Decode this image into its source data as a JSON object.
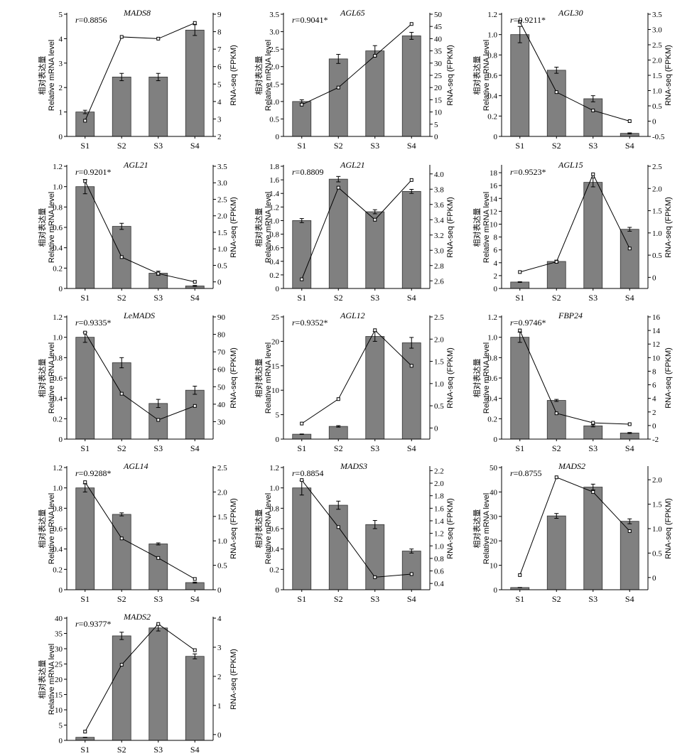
{
  "axis_titles": {
    "left_cn": "相对表达量",
    "left_en": "Relative mRNA level",
    "right": "RNA-seq (FPKM)"
  },
  "colors": {
    "bar": "#808080",
    "bar_stroke": "#333333",
    "line": "#000000"
  },
  "chart_data": [
    {
      "type": "bar+line",
      "gene": "MADS8",
      "r": "=0.8856",
      "categories": [
        "S1",
        "S2",
        "S3",
        "S4"
      ],
      "bar_values": [
        1.0,
        2.43,
        2.43,
        4.35
      ],
      "bar_errors": [
        0.07,
        0.15,
        0.15,
        0.22
      ],
      "line_values": [
        2.9,
        7.7,
        7.6,
        8.5
      ],
      "ylim_left": [
        0,
        5
      ],
      "yticks_left": [
        0,
        1,
        2,
        3,
        4,
        5
      ],
      "ylim_right": [
        2,
        9
      ],
      "yticks_right": [
        2,
        3,
        4,
        5,
        6,
        7,
        8,
        9
      ]
    },
    {
      "type": "bar+line",
      "gene": "AGL65",
      "r": "=0.9041*",
      "categories": [
        "S1",
        "S2",
        "S3",
        "S4"
      ],
      "bar_values": [
        1.0,
        2.22,
        2.45,
        2.88
      ],
      "bar_errors": [
        0.05,
        0.13,
        0.15,
        0.1
      ],
      "line_values": [
        13,
        20,
        33,
        46
      ],
      "ylim_left": [
        0,
        3.5
      ],
      "yticks_left": [
        0,
        0.5,
        1.0,
        1.5,
        2.0,
        2.5,
        3.0,
        3.5
      ],
      "ylim_right": [
        0,
        50
      ],
      "yticks_right": [
        0,
        5,
        10,
        15,
        20,
        25,
        30,
        35,
        40,
        45,
        50
      ]
    },
    {
      "type": "bar+line",
      "gene": "AGL30",
      "r": "=0.9211*",
      "categories": [
        "S1",
        "S2",
        "S3",
        "S4"
      ],
      "bar_values": [
        1.0,
        0.65,
        0.37,
        0.03
      ],
      "bar_errors": [
        0.08,
        0.03,
        0.03,
        0.005
      ],
      "line_values": [
        3.25,
        0.95,
        0.35,
        0.0
      ],
      "ylim_left": [
        0,
        1.2
      ],
      "yticks_left": [
        0,
        0.2,
        0.4,
        0.6,
        0.8,
        1.0,
        1.2
      ],
      "ylim_right": [
        -0.5,
        3.5
      ],
      "yticks_right": [
        -0.5,
        0,
        0.5,
        1.0,
        1.5,
        2.0,
        2.5,
        3.0,
        3.5
      ]
    },
    {
      "type": "bar+line",
      "gene": "AGL21",
      "r": "=0.9201*",
      "categories": [
        "S1",
        "S2",
        "S3",
        "S4"
      ],
      "bar_values": [
        1.0,
        0.61,
        0.15,
        0.025
      ],
      "bar_errors": [
        0.07,
        0.03,
        0.02,
        0.005
      ],
      "line_values": [
        3.05,
        0.75,
        0.25,
        0.0
      ],
      "ylim_left": [
        0,
        1.2
      ],
      "yticks_left": [
        0,
        0.2,
        0.4,
        0.6,
        0.8,
        1.0,
        1.2
      ],
      "ylim_right": [
        -0.2,
        3.5
      ],
      "yticks_right": [
        0,
        0.5,
        1.0,
        1.5,
        2.0,
        2.5,
        3.0,
        3.5
      ]
    },
    {
      "type": "bar+line",
      "gene": "AGL21",
      "r": "=0.8809",
      "categories": [
        "S1",
        "S2",
        "S3",
        "S4"
      ],
      "bar_values": [
        1.0,
        1.61,
        1.13,
        1.43
      ],
      "bar_errors": [
        0.03,
        0.04,
        0.03,
        0.03
      ],
      "line_values": [
        2.62,
        3.82,
        3.4,
        3.92
      ],
      "ylim_left": [
        0,
        1.8
      ],
      "yticks_left": [
        0,
        0.2,
        0.4,
        0.6,
        0.8,
        1.0,
        1.2,
        1.4,
        1.6,
        1.8
      ],
      "ylim_right": [
        2.5,
        4.1
      ],
      "yticks_right": [
        2.6,
        2.8,
        3.0,
        3.2,
        3.4,
        3.6,
        3.8,
        4.0
      ]
    },
    {
      "type": "bar+line",
      "gene": "AGL15",
      "r": "=0.9523*",
      "categories": [
        "S1",
        "S2",
        "S3",
        "S4"
      ],
      "bar_values": [
        1.0,
        4.2,
        16.5,
        9.2
      ],
      "bar_errors": [
        0.05,
        0.2,
        0.7,
        0.3
      ],
      "line_values": [
        0.12,
        0.35,
        2.32,
        0.65
      ],
      "ylim_left": [
        0,
        19
      ],
      "yticks_left": [
        0,
        2,
        4,
        6,
        8,
        10,
        12,
        14,
        16,
        18
      ],
      "ylim_right": [
        -0.25,
        2.5
      ],
      "yticks_right": [
        0,
        0.5,
        1.0,
        1.5,
        2.0,
        2.5
      ]
    },
    {
      "type": "bar+line",
      "gene": "LeMADS",
      "r": "=0.9335*",
      "categories": [
        "S1",
        "S2",
        "S3",
        "S4"
      ],
      "bar_values": [
        1.0,
        0.75,
        0.35,
        0.48
      ],
      "bar_errors": [
        0.05,
        0.05,
        0.04,
        0.04
      ],
      "line_values": [
        81,
        46,
        31,
        39
      ],
      "ylim_left": [
        0,
        1.2
      ],
      "yticks_left": [
        0,
        0.2,
        0.4,
        0.6,
        0.8,
        1.0,
        1.2
      ],
      "ylim_right": [
        20,
        90
      ],
      "yticks_right": [
        30,
        40,
        50,
        60,
        70,
        80,
        90
      ]
    },
    {
      "type": "bar+line",
      "gene": "AGL12",
      "r": "=0.9352*",
      "categories": [
        "S1",
        "S2",
        "S3",
        "S4"
      ],
      "bar_values": [
        1.0,
        2.6,
        21.0,
        19.7
      ],
      "bar_errors": [
        0.05,
        0.15,
        1.0,
        1.1
      ],
      "line_values": [
        0.1,
        0.65,
        2.2,
        1.4
      ],
      "ylim_left": [
        0,
        25
      ],
      "yticks_left": [
        0,
        5,
        10,
        15,
        20,
        25
      ],
      "ylim_right": [
        -0.25,
        2.5
      ],
      "yticks_right": [
        0,
        0.5,
        1.0,
        1.5,
        2.0,
        2.5
      ]
    },
    {
      "type": "bar+line",
      "gene": "FBP24",
      "r": "=0.9746*",
      "categories": [
        "S1",
        "S2",
        "S3",
        "S4"
      ],
      "bar_values": [
        1.0,
        0.38,
        0.13,
        0.06
      ],
      "bar_errors": [
        0.05,
        0.01,
        0.01,
        0.005
      ],
      "line_values": [
        14.0,
        1.8,
        0.4,
        0.2
      ],
      "ylim_left": [
        0,
        1.2
      ],
      "yticks_left": [
        0,
        0.2,
        0.4,
        0.6,
        0.8,
        1.0,
        1.2
      ],
      "ylim_right": [
        -2,
        16
      ],
      "yticks_right": [
        -2,
        0,
        2,
        4,
        6,
        8,
        10,
        12,
        14,
        16
      ]
    },
    {
      "type": "bar+line",
      "gene": "AGL14",
      "r": "=0.9288*",
      "categories": [
        "S1",
        "S2",
        "S3",
        "S4"
      ],
      "bar_values": [
        1.0,
        0.74,
        0.45,
        0.07
      ],
      "bar_errors": [
        0.04,
        0.015,
        0.01,
        0.005
      ],
      "line_values": [
        2.2,
        1.05,
        0.65,
        0.22
      ],
      "ylim_left": [
        0,
        1.2
      ],
      "yticks_left": [
        0,
        0.2,
        0.4,
        0.6,
        0.8,
        1.0,
        1.2
      ],
      "ylim_right": [
        0,
        2.5
      ],
      "yticks_right": [
        0,
        0.5,
        1.0,
        1.5,
        2.0,
        2.5
      ]
    },
    {
      "type": "bar+line",
      "gene": "MADS3",
      "r": "=0.8854",
      "categories": [
        "S1",
        "S2",
        "S3",
        "S4"
      ],
      "bar_values": [
        1.0,
        0.83,
        0.64,
        0.38
      ],
      "bar_errors": [
        0.07,
        0.04,
        0.04,
        0.02
      ],
      "line_values": [
        2.05,
        1.3,
        0.5,
        0.55
      ],
      "ylim_left": [
        0,
        1.2
      ],
      "yticks_left": [
        0,
        0.2,
        0.4,
        0.6,
        0.8,
        1.0,
        1.2
      ],
      "ylim_right": [
        0.3,
        2.25
      ],
      "yticks_right": [
        0.4,
        0.6,
        0.8,
        1.0,
        1.2,
        1.4,
        1.6,
        1.8,
        2.0,
        2.2
      ]
    },
    {
      "type": "bar+line",
      "gene": "MADS2",
      "r": "=0.8755",
      "categories": [
        "S1",
        "S2",
        "S3",
        "S4"
      ],
      "bar_values": [
        0.9,
        30.2,
        42.0,
        28.0
      ],
      "bar_errors": [
        0.05,
        1.0,
        1.2,
        1.0
      ],
      "line_values": [
        0.05,
        2.05,
        1.75,
        0.95
      ],
      "ylim_left": [
        0,
        50
      ],
      "yticks_left": [
        0,
        10,
        20,
        30,
        40,
        50
      ],
      "ylim_right": [
        -0.25,
        2.25
      ],
      "yticks_right": [
        0,
        0.5,
        1.0,
        1.5,
        2.0
      ]
    },
    {
      "type": "bar+line",
      "gene": "MADS2",
      "r": "=0.9377*",
      "categories": [
        "S1",
        "S2",
        "S3",
        "S4"
      ],
      "bar_values": [
        1.0,
        34.2,
        36.8,
        27.5
      ],
      "bar_errors": [
        0.05,
        1.2,
        1.0,
        0.8
      ],
      "line_values": [
        0.1,
        2.4,
        3.8,
        2.9
      ],
      "ylim_left": [
        0,
        40
      ],
      "yticks_left": [
        0,
        5,
        10,
        15,
        20,
        25,
        30,
        35,
        40
      ],
      "ylim_right": [
        -0.2,
        4
      ],
      "yticks_right": [
        0,
        1,
        2,
        3,
        4
      ]
    }
  ]
}
